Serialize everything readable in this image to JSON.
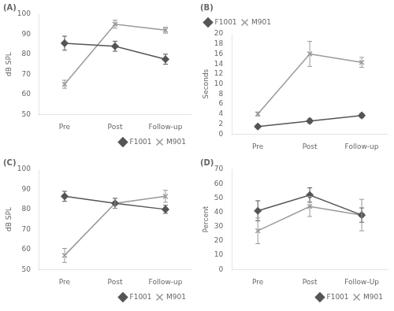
{
  "chart_data": [
    {
      "type": "line",
      "title": "(A)",
      "ylabel": "dB SPL",
      "categories": [
        "Pre",
        "Post",
        "Follow-up"
      ],
      "series": [
        {
          "name": "F1001",
          "color": "#555555",
          "marker": "diamond",
          "values": [
            85.5,
            84.0,
            77.5
          ],
          "errors": [
            3.5,
            2.5,
            2.5
          ]
        },
        {
          "name": "M901",
          "color": "#999999",
          "marker": "x",
          "values": [
            65.0,
            95.0,
            92.0
          ],
          "errors": [
            2.0,
            2.0,
            1.5
          ]
        }
      ],
      "ylim": [
        50,
        100
      ],
      "yticks": [
        50,
        60,
        70,
        80,
        90,
        100
      ],
      "grid": false,
      "legend": "lower right"
    },
    {
      "type": "line",
      "title": "(B)",
      "ylabel": "Seconds",
      "categories": [
        "Pre",
        "Post",
        "Follow-up"
      ],
      "series": [
        {
          "name": "F1001",
          "color": "#555555",
          "marker": "diamond",
          "values": [
            1.5,
            2.6,
            3.7
          ],
          "errors": [
            0.3,
            0.4,
            0.4
          ]
        },
        {
          "name": "M901",
          "color": "#999999",
          "marker": "x",
          "values": [
            4.0,
            16.0,
            14.3
          ],
          "errors": [
            0.4,
            2.5,
            1.0
          ]
        }
      ],
      "ylim": [
        0,
        20
      ],
      "yticks": [
        0,
        2,
        4,
        6,
        8,
        10,
        12,
        14,
        16,
        18,
        20
      ],
      "grid": false,
      "legend": "upper left"
    },
    {
      "type": "line",
      "title": "(C)",
      "ylabel": "dB SPL",
      "categories": [
        "Pre",
        "Post",
        "Follow-up"
      ],
      "series": [
        {
          "name": "F1001",
          "color": "#555555",
          "marker": "diamond",
          "values": [
            86.5,
            83.0,
            80.0
          ],
          "errors": [
            2.5,
            2.5,
            2.0
          ]
        },
        {
          "name": "M901",
          "color": "#999999",
          "marker": "x",
          "values": [
            57.0,
            83.0,
            86.5
          ],
          "errors": [
            3.5,
            2.5,
            3.0
          ]
        }
      ],
      "ylim": [
        50,
        100
      ],
      "yticks": [
        50,
        60,
        70,
        80,
        90,
        100
      ],
      "grid": false,
      "legend": "lower right"
    },
    {
      "type": "line",
      "title": "(D)",
      "ylabel": "Percent",
      "categories": [
        "Pre",
        "Post",
        "Follow-Up"
      ],
      "series": [
        {
          "name": "F1001",
          "color": "#555555",
          "marker": "diamond",
          "values": [
            41.0,
            52.0,
            38.0
          ],
          "errors": [
            7.0,
            5.0,
            5.0
          ]
        },
        {
          "name": "M901",
          "color": "#999999",
          "marker": "x",
          "values": [
            27.0,
            44.0,
            38.0
          ],
          "errors": [
            9.0,
            7.0,
            11.0
          ]
        }
      ],
      "ylim": [
        0,
        70
      ],
      "yticks": [
        0,
        10,
        20,
        30,
        40,
        50,
        60,
        70
      ],
      "grid": false,
      "legend": "lower right"
    }
  ]
}
